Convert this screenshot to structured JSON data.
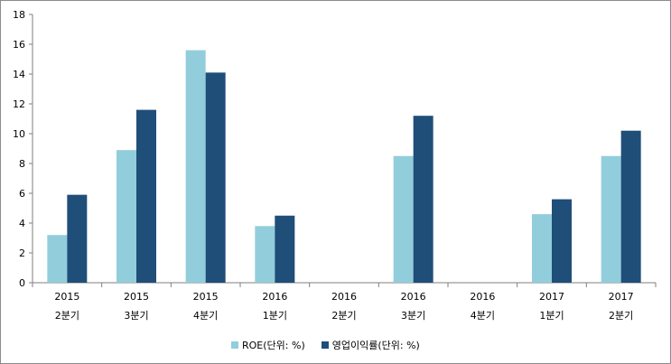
{
  "colors": {
    "roe": "#92CDDC",
    "op_margin": "#1F4E79",
    "axis": "#7f7f7f",
    "border": "#8c8c8c"
  },
  "chart_data": {
    "type": "bar",
    "categories": [
      [
        "2015",
        "2분기"
      ],
      [
        "2015",
        "3분기"
      ],
      [
        "2015",
        "4분기"
      ],
      [
        "2016",
        "1분기"
      ],
      [
        "2016",
        "2분기"
      ],
      [
        "2016",
        "3분기"
      ],
      [
        "2016",
        "4분기"
      ],
      [
        "2017",
        "1분기"
      ],
      [
        "2017",
        "2분기"
      ]
    ],
    "series": [
      {
        "name": "ROE(단위: %)",
        "values": [
          3.2,
          8.9,
          15.6,
          3.8,
          0,
          8.5,
          0,
          4.6,
          8.5
        ]
      },
      {
        "name": "영업이익률(단위: %)",
        "values": [
          5.9,
          11.6,
          14.1,
          4.5,
          0,
          11.2,
          0,
          5.6,
          10.2
        ]
      }
    ],
    "ylim": [
      0,
      18
    ],
    "yticks": [
      0,
      2,
      4,
      6,
      8,
      10,
      12,
      14,
      16,
      18
    ],
    "grid": false,
    "legend_position": "bottom"
  }
}
